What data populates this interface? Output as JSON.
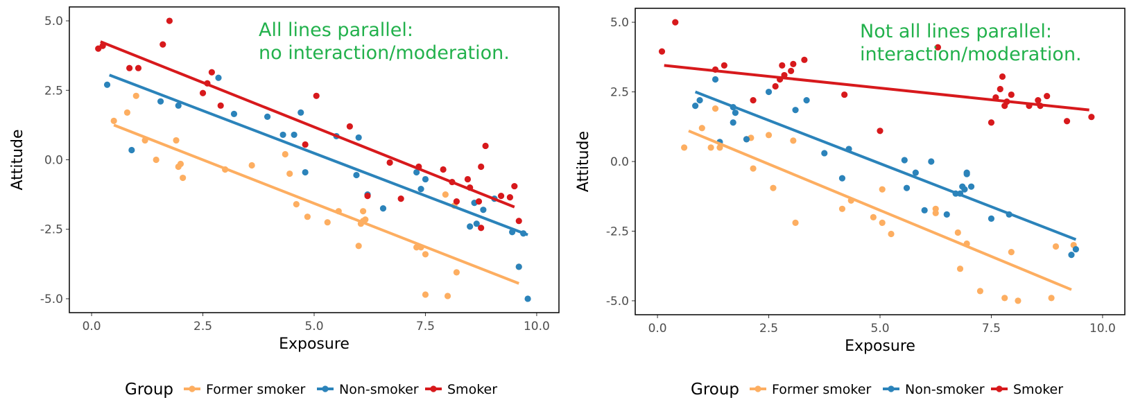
{
  "chart_data": [
    {
      "type": "scatter",
      "xlabel": "Exposure",
      "ylabel": "Attitude",
      "xlim": [
        -0.5,
        10.5
      ],
      "ylim": [
        -5.5,
        5.5
      ],
      "x_ticks": [
        "0.0",
        "2.5",
        "5.0",
        "7.5",
        "10.0"
      ],
      "y_ticks": [
        "5.0",
        "2.5",
        "0.0",
        "-2.5",
        "-5.0"
      ],
      "annotation": [
        "All lines parallel:",
        "no interaction/moderation."
      ],
      "legend": {
        "title": "Group",
        "position": "bottom",
        "entries": [
          "Former smoker",
          "Non-smoker",
          "Smoker"
        ]
      },
      "series": [
        {
          "name": "Former smoker",
          "color": "#fdae61",
          "fit": {
            "x": [
              0.5,
              9.6
            ],
            "y": [
              1.25,
              -4.45
            ]
          },
          "points": [
            [
              0.5,
              1.4
            ],
            [
              0.8,
              1.7
            ],
            [
              1.0,
              2.3
            ],
            [
              1.2,
              0.7
            ],
            [
              1.45,
              0.0
            ],
            [
              1.9,
              0.7
            ],
            [
              1.95,
              -0.25
            ],
            [
              2.0,
              -0.15
            ],
            [
              2.05,
              -0.65
            ],
            [
              3.0,
              -0.35
            ],
            [
              3.6,
              -0.2
            ],
            [
              4.35,
              0.2
            ],
            [
              4.45,
              -0.5
            ],
            [
              4.6,
              -1.6
            ],
            [
              4.85,
              -2.05
            ],
            [
              5.3,
              -2.25
            ],
            [
              5.55,
              -1.85
            ],
            [
              6.0,
              -3.1
            ],
            [
              6.05,
              -2.3
            ],
            [
              6.1,
              -1.85
            ],
            [
              6.1,
              -2.2
            ],
            [
              6.15,
              -2.15
            ],
            [
              7.3,
              -3.15
            ],
            [
              7.4,
              -3.15
            ],
            [
              7.5,
              -3.4
            ],
            [
              7.5,
              -4.85
            ],
            [
              7.95,
              -1.25
            ],
            [
              8.0,
              -4.9
            ],
            [
              8.15,
              -1.65
            ],
            [
              8.2,
              -4.05
            ],
            [
              9.6,
              -3.85
            ]
          ]
        },
        {
          "name": "Non-smoker",
          "color": "#2b83ba",
          "fit": {
            "x": [
              0.4,
              9.8
            ],
            "y": [
              3.05,
              -2.7
            ]
          },
          "points": [
            [
              0.35,
              2.7
            ],
            [
              0.9,
              0.35
            ],
            [
              1.55,
              2.1
            ],
            [
              1.95,
              1.95
            ],
            [
              2.85,
              2.95
            ],
            [
              3.2,
              1.65
            ],
            [
              3.95,
              1.55
            ],
            [
              4.3,
              0.9
            ],
            [
              4.55,
              0.9
            ],
            [
              4.7,
              1.7
            ],
            [
              4.8,
              -0.45
            ],
            [
              5.5,
              0.85
            ],
            [
              5.95,
              -0.55
            ],
            [
              6.0,
              0.8
            ],
            [
              6.2,
              -1.25
            ],
            [
              6.55,
              -1.75
            ],
            [
              7.3,
              -0.45
            ],
            [
              7.4,
              -1.05
            ],
            [
              7.5,
              -0.7
            ],
            [
              8.5,
              -2.4
            ],
            [
              8.6,
              -1.55
            ],
            [
              8.65,
              -2.3
            ],
            [
              8.8,
              -1.8
            ],
            [
              9.05,
              -1.4
            ],
            [
              9.45,
              -2.6
            ],
            [
              9.6,
              -3.85
            ],
            [
              9.7,
              -2.65
            ],
            [
              9.8,
              -5.0
            ]
          ]
        },
        {
          "name": "Smoker",
          "color": "#d7191c",
          "fit": {
            "x": [
              0.2,
              9.5
            ],
            "y": [
              4.25,
              -1.7
            ]
          },
          "points": [
            [
              0.15,
              4.0
            ],
            [
              0.25,
              4.1
            ],
            [
              0.85,
              3.3
            ],
            [
              1.05,
              3.3
            ],
            [
              1.6,
              4.15
            ],
            [
              1.75,
              5.0
            ],
            [
              2.5,
              2.4
            ],
            [
              2.6,
              2.75
            ],
            [
              2.7,
              3.15
            ],
            [
              2.9,
              1.95
            ],
            [
              5.05,
              2.3
            ],
            [
              4.8,
              0.55
            ],
            [
              5.8,
              1.2
            ],
            [
              6.2,
              -1.3
            ],
            [
              6.7,
              -0.1
            ],
            [
              6.95,
              -1.4
            ],
            [
              7.35,
              -0.25
            ],
            [
              7.9,
              -0.35
            ],
            [
              8.1,
              -0.8
            ],
            [
              8.2,
              -1.5
            ],
            [
              8.45,
              -0.7
            ],
            [
              8.5,
              -1.0
            ],
            [
              8.7,
              -1.5
            ],
            [
              8.75,
              -0.25
            ],
            [
              8.75,
              -2.45
            ],
            [
              8.85,
              0.5
            ],
            [
              9.2,
              -1.3
            ],
            [
              9.4,
              -1.35
            ],
            [
              9.5,
              -0.95
            ],
            [
              9.6,
              -2.2
            ]
          ]
        }
      ]
    },
    {
      "type": "scatter",
      "xlabel": "Exposure",
      "ylabel": "Attitude",
      "xlim": [
        -0.5,
        10.5
      ],
      "ylim": [
        -5.5,
        5.5
      ],
      "x_ticks": [
        "0.0",
        "2.5",
        "5.0",
        "7.5",
        "10.0"
      ],
      "y_ticks": [
        "5.0",
        "2.5",
        "0.0",
        "-2.5",
        "-5.0"
      ],
      "annotation": [
        "Not all lines parallel:",
        "interaction/moderation."
      ],
      "legend": {
        "title": "Group",
        "position": "bottom",
        "entries": [
          "Former smoker",
          "Non-smoker",
          "Smoker"
        ]
      },
      "series": [
        {
          "name": "Former smoker",
          "color": "#fdae61",
          "fit": {
            "x": [
              0.7,
              9.3
            ],
            "y": [
              1.1,
              -4.6
            ]
          },
          "points": [
            [
              0.6,
              0.5
            ],
            [
              1.0,
              1.2
            ],
            [
              1.2,
              0.5
            ],
            [
              1.3,
              1.9
            ],
            [
              1.4,
              0.5
            ],
            [
              2.0,
              0.8
            ],
            [
              2.1,
              0.85
            ],
            [
              2.15,
              -0.25
            ],
            [
              2.5,
              0.95
            ],
            [
              2.6,
              -0.95
            ],
            [
              3.05,
              0.75
            ],
            [
              3.1,
              -2.2
            ],
            [
              4.15,
              -1.7
            ],
            [
              4.35,
              -1.4
            ],
            [
              4.85,
              -2.0
            ],
            [
              5.05,
              -1.0
            ],
            [
              5.05,
              -2.2
            ],
            [
              5.25,
              -2.6
            ],
            [
              6.25,
              -1.7
            ],
            [
              6.25,
              -1.85
            ],
            [
              6.75,
              -2.55
            ],
            [
              6.8,
              -3.85
            ],
            [
              6.95,
              -2.95
            ],
            [
              7.25,
              -4.65
            ],
            [
              7.8,
              -4.9
            ],
            [
              7.95,
              -3.25
            ],
            [
              8.1,
              -5.0
            ],
            [
              8.85,
              -4.9
            ],
            [
              8.95,
              -3.05
            ],
            [
              9.35,
              -3.0
            ]
          ]
        },
        {
          "name": "Non-smoker",
          "color": "#2b83ba",
          "fit": {
            "x": [
              0.85,
              9.4
            ],
            "y": [
              2.5,
              -2.8
            ]
          },
          "points": [
            [
              0.85,
              2.0
            ],
            [
              0.95,
              2.2
            ],
            [
              1.3,
              2.95
            ],
            [
              1.4,
              0.7
            ],
            [
              1.7,
              1.95
            ],
            [
              1.7,
              1.4
            ],
            [
              1.75,
              1.75
            ],
            [
              2.0,
              0.8
            ],
            [
              2.5,
              2.5
            ],
            [
              3.1,
              1.85
            ],
            [
              3.35,
              2.2
            ],
            [
              3.75,
              0.3
            ],
            [
              4.15,
              -0.6
            ],
            [
              4.3,
              0.45
            ],
            [
              5.55,
              0.05
            ],
            [
              5.6,
              -0.95
            ],
            [
              5.8,
              -0.4
            ],
            [
              6.0,
              -1.75
            ],
            [
              6.15,
              0.0
            ],
            [
              6.5,
              -1.9
            ],
            [
              6.7,
              -1.15
            ],
            [
              6.8,
              -1.15
            ],
            [
              6.85,
              -0.9
            ],
            [
              6.9,
              -1.0
            ],
            [
              6.95,
              -0.4
            ],
            [
              6.95,
              -0.45
            ],
            [
              7.05,
              -0.9
            ],
            [
              7.5,
              -2.05
            ],
            [
              7.9,
              -1.9
            ],
            [
              9.3,
              -3.35
            ],
            [
              9.4,
              -3.15
            ]
          ]
        },
        {
          "name": "Smoker",
          "color": "#d7191c",
          "fit": {
            "x": [
              0.15,
              9.7
            ],
            "y": [
              3.45,
              1.85
            ]
          },
          "points": [
            [
              0.1,
              3.95
            ],
            [
              0.4,
              5.0
            ],
            [
              1.3,
              3.3
            ],
            [
              1.5,
              3.45
            ],
            [
              2.15,
              2.2
            ],
            [
              2.65,
              2.7
            ],
            [
              2.75,
              2.95
            ],
            [
              2.8,
              3.45
            ],
            [
              2.85,
              3.1
            ],
            [
              3.0,
              3.25
            ],
            [
              3.05,
              3.5
            ],
            [
              3.3,
              3.65
            ],
            [
              4.2,
              2.4
            ],
            [
              5.0,
              1.1
            ],
            [
              6.3,
              4.1
            ],
            [
              7.5,
              1.4
            ],
            [
              7.6,
              2.3
            ],
            [
              7.7,
              2.6
            ],
            [
              7.75,
              3.05
            ],
            [
              7.8,
              2.0
            ],
            [
              7.85,
              2.15
            ],
            [
              7.95,
              2.4
            ],
            [
              8.35,
              2.0
            ],
            [
              8.55,
              2.2
            ],
            [
              8.6,
              2.0
            ],
            [
              8.75,
              2.35
            ],
            [
              9.2,
              1.45
            ],
            [
              9.75,
              1.6
            ]
          ]
        }
      ]
    }
  ]
}
